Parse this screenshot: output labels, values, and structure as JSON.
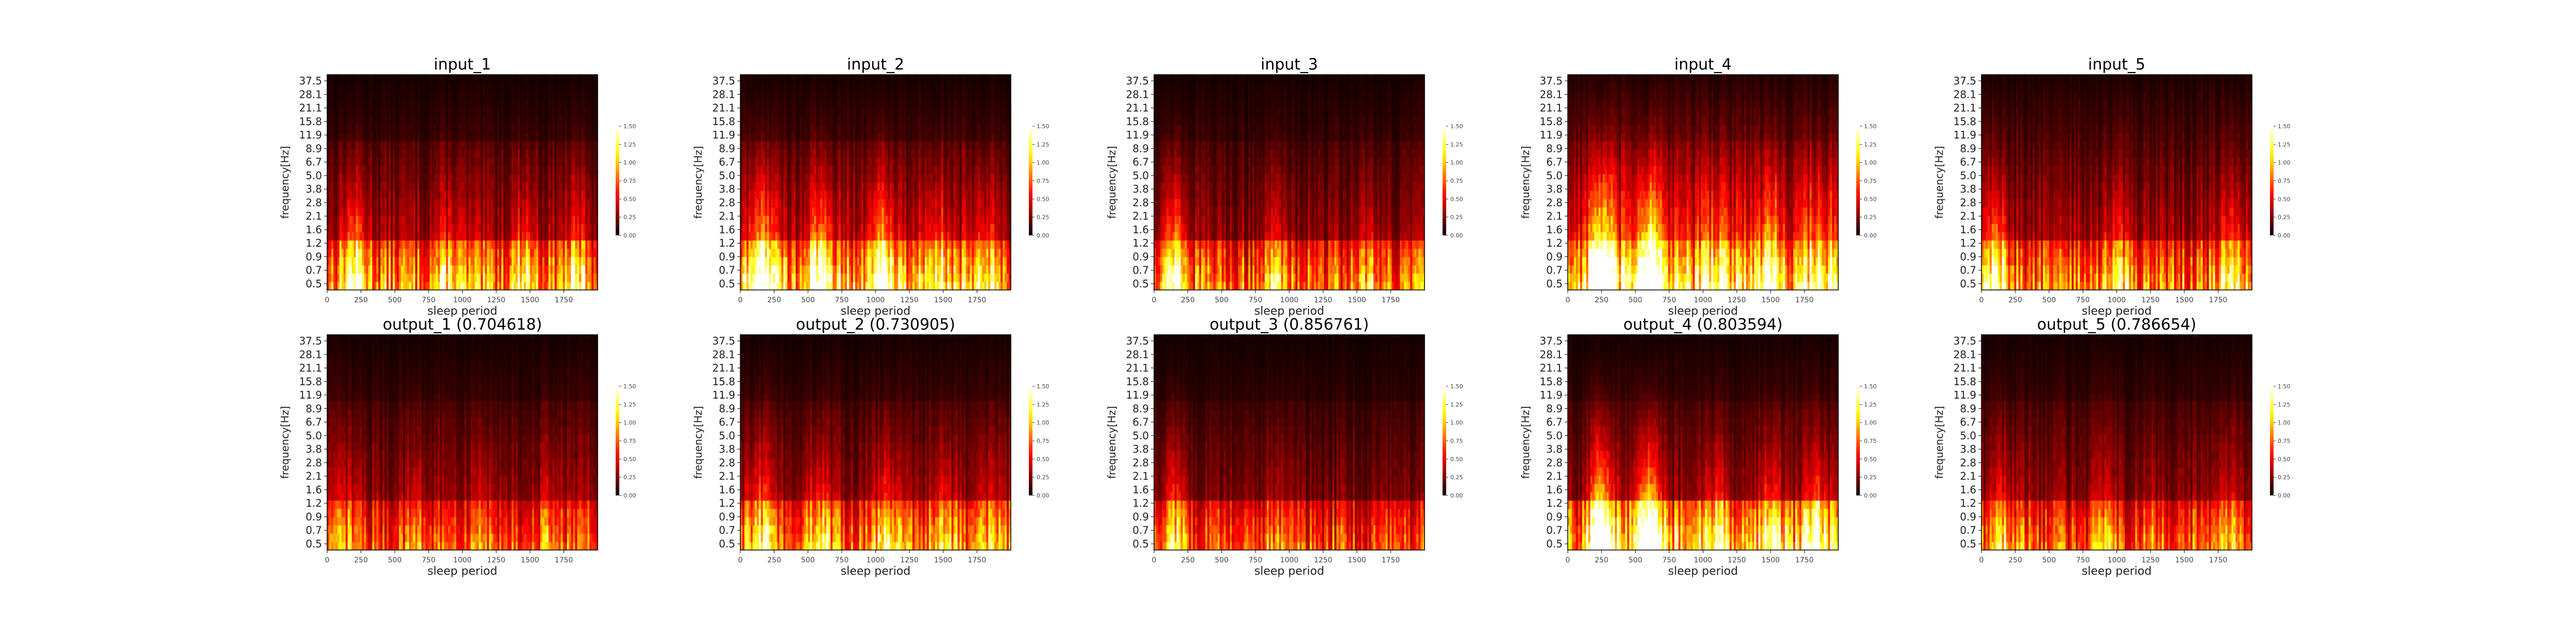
{
  "chart_data": [
    {
      "type": "heatmap",
      "title": "input_1",
      "xlabel": "sleep period",
      "ylabel": "frequency[Hz]",
      "xticks": [
        0,
        250,
        500,
        750,
        1000,
        1250,
        1500,
        1750
      ],
      "xlim": [
        0,
        2000
      ],
      "yticks": [
        "0.5",
        "0.7",
        "0.9",
        "1.2",
        "1.6",
        "2.1",
        "2.8",
        "3.8",
        "5.0",
        "6.7",
        "8.9",
        "11.9",
        "15.8",
        "21.1",
        "28.1",
        "37.5"
      ],
      "colorbar_ticks": [
        "0.00",
        "0.25",
        "0.50",
        "0.75",
        "1.00",
        "1.25",
        "1.50"
      ],
      "clim": [
        0,
        1.5
      ],
      "colormap": "hot",
      "pattern": {
        "low_band": 0.9,
        "mid_band": 0.35,
        "high_band": 0.1,
        "bursts": [
          [
            200,
            0.7
          ],
          [
            900,
            0.4
          ],
          [
            1450,
            0.45
          ],
          [
            1850,
            0.4
          ]
        ]
      }
    },
    {
      "type": "heatmap",
      "title": "input_2",
      "xlabel": "sleep period",
      "ylabel": "frequency[Hz]",
      "xticks": [
        0,
        250,
        500,
        750,
        1000,
        1250,
        1500,
        1750
      ],
      "xlim": [
        0,
        2000
      ],
      "yticks": [
        "0.5",
        "0.7",
        "0.9",
        "1.2",
        "1.6",
        "2.1",
        "2.8",
        "3.8",
        "5.0",
        "6.7",
        "8.9",
        "11.9",
        "15.8",
        "21.1",
        "28.1",
        "37.5"
      ],
      "colorbar_ticks": [
        "0.00",
        "0.25",
        "0.50",
        "0.75",
        "1.00",
        "1.25",
        "1.50"
      ],
      "clim": [
        0,
        1.5
      ],
      "colormap": "hot",
      "pattern": {
        "low_band": 1.0,
        "mid_band": 0.4,
        "high_band": 0.12,
        "bursts": [
          [
            170,
            1.0
          ],
          [
            600,
            0.8
          ],
          [
            1050,
            0.85
          ],
          [
            1450,
            0.6
          ],
          [
            1800,
            0.5
          ]
        ]
      }
    },
    {
      "type": "heatmap",
      "title": "input_3",
      "xlabel": "sleep period",
      "ylabel": "frequency[Hz]",
      "xticks": [
        0,
        250,
        500,
        750,
        1000,
        1250,
        1500,
        1750
      ],
      "xlim": [
        0,
        2000
      ],
      "yticks": [
        "0.5",
        "0.7",
        "0.9",
        "1.2",
        "1.6",
        "2.1",
        "2.8",
        "3.8",
        "5.0",
        "6.7",
        "8.9",
        "11.9",
        "15.8",
        "21.1",
        "28.1",
        "37.5"
      ],
      "colorbar_ticks": [
        "0.00",
        "0.25",
        "0.50",
        "0.75",
        "1.00",
        "1.25",
        "1.50"
      ],
      "clim": [
        0,
        1.5
      ],
      "colormap": "hot",
      "pattern": {
        "low_band": 0.8,
        "mid_band": 0.3,
        "high_band": 0.1,
        "bursts": [
          [
            150,
            0.9
          ],
          [
            900,
            0.35
          ],
          [
            1600,
            0.3
          ]
        ]
      }
    },
    {
      "type": "heatmap",
      "title": "input_4",
      "xlabel": "sleep period",
      "ylabel": "frequency[Hz]",
      "xticks": [
        0,
        250,
        500,
        750,
        1000,
        1250,
        1500,
        1750
      ],
      "xlim": [
        0,
        2000
      ],
      "yticks": [
        "0.5",
        "0.7",
        "0.9",
        "1.2",
        "1.6",
        "2.1",
        "2.8",
        "3.8",
        "5.0",
        "6.7",
        "8.9",
        "11.9",
        "15.8",
        "21.1",
        "28.1",
        "37.5"
      ],
      "colorbar_ticks": [
        "0.00",
        "0.25",
        "0.50",
        "0.75",
        "1.00",
        "1.25",
        "1.50"
      ],
      "clim": [
        0,
        1.5
      ],
      "colormap": "hot",
      "pattern": {
        "low_band": 1.1,
        "mid_band": 0.55,
        "high_band": 0.2,
        "bursts": [
          [
            250,
            1.3
          ],
          [
            600,
            1.3
          ],
          [
            1100,
            0.5
          ],
          [
            1500,
            0.6
          ],
          [
            1850,
            0.6
          ]
        ]
      }
    },
    {
      "type": "heatmap",
      "title": "input_5",
      "xlabel": "sleep period",
      "ylabel": "frequency[Hz]",
      "xticks": [
        0,
        250,
        500,
        750,
        1000,
        1250,
        1500,
        1750
      ],
      "xlim": [
        0,
        2000
      ],
      "yticks": [
        "0.5",
        "0.7",
        "0.9",
        "1.2",
        "1.6",
        "2.1",
        "2.8",
        "3.8",
        "5.0",
        "6.7",
        "8.9",
        "11.9",
        "15.8",
        "21.1",
        "28.1",
        "37.5"
      ],
      "colorbar_ticks": [
        "0.00",
        "0.25",
        "0.50",
        "0.75",
        "1.00",
        "1.25",
        "1.50"
      ],
      "clim": [
        0,
        1.5
      ],
      "colormap": "hot",
      "pattern": {
        "low_band": 0.85,
        "mid_band": 0.35,
        "high_band": 0.15,
        "bursts": [
          [
            100,
            0.8
          ],
          [
            1000,
            0.4
          ],
          [
            1850,
            0.5
          ]
        ]
      }
    },
    {
      "type": "heatmap",
      "title": "output_1 (0.704618)",
      "xlabel": "sleep period",
      "ylabel": "frequency[Hz]",
      "xticks": [
        0,
        250,
        500,
        750,
        1000,
        1250,
        1500,
        1750
      ],
      "xlim": [
        0,
        2000
      ],
      "yticks": [
        "0.5",
        "0.7",
        "0.9",
        "1.2",
        "1.6",
        "2.1",
        "2.8",
        "3.8",
        "5.0",
        "6.7",
        "8.9",
        "11.9",
        "15.8",
        "21.1",
        "28.1",
        "37.5"
      ],
      "colorbar_ticks": [
        "0.00",
        "0.25",
        "0.50",
        "0.75",
        "1.00",
        "1.25",
        "1.50"
      ],
      "clim": [
        0,
        1.5
      ],
      "colormap": "hot",
      "pattern": {
        "low_band": 0.7,
        "mid_band": 0.3,
        "high_band": 0.1,
        "bursts": [
          [
            150,
            0.3
          ],
          [
            650,
            0.25
          ],
          [
            1150,
            0.25
          ],
          [
            1650,
            0.25
          ]
        ]
      }
    },
    {
      "type": "heatmap",
      "title": "output_2 (0.730905)",
      "xlabel": "sleep period",
      "ylabel": "frequency[Hz]",
      "xticks": [
        0,
        250,
        500,
        750,
        1000,
        1250,
        1500,
        1750
      ],
      "xlim": [
        0,
        2000
      ],
      "yticks": [
        "0.5",
        "0.7",
        "0.9",
        "1.2",
        "1.6",
        "2.1",
        "2.8",
        "3.8",
        "5.0",
        "6.7",
        "8.9",
        "11.9",
        "15.8",
        "21.1",
        "28.1",
        "37.5"
      ],
      "colorbar_ticks": [
        "0.00",
        "0.25",
        "0.50",
        "0.75",
        "1.00",
        "1.25",
        "1.50"
      ],
      "clim": [
        0,
        1.5
      ],
      "colormap": "hot",
      "pattern": {
        "low_band": 0.8,
        "mid_band": 0.3,
        "high_band": 0.1,
        "bursts": [
          [
            150,
            0.6
          ],
          [
            580,
            0.5
          ],
          [
            1080,
            0.5
          ],
          [
            1500,
            0.45
          ],
          [
            1850,
            0.3
          ]
        ]
      }
    },
    {
      "type": "heatmap",
      "title": "output_3 (0.856761)",
      "xlabel": "sleep period",
      "ylabel": "frequency[Hz]",
      "xticks": [
        0,
        250,
        500,
        750,
        1000,
        1250,
        1500,
        1750
      ],
      "xlim": [
        0,
        2000
      ],
      "yticks": [
        "0.5",
        "0.7",
        "0.9",
        "1.2",
        "1.6",
        "2.1",
        "2.8",
        "3.8",
        "5.0",
        "6.7",
        "8.9",
        "11.9",
        "15.8",
        "21.1",
        "28.1",
        "37.5"
      ],
      "colorbar_ticks": [
        "0.00",
        "0.25",
        "0.50",
        "0.75",
        "1.00",
        "1.25",
        "1.50"
      ],
      "clim": [
        0,
        1.5
      ],
      "colormap": "hot",
      "pattern": {
        "low_band": 0.7,
        "mid_band": 0.25,
        "high_band": 0.08,
        "bursts": [
          [
            150,
            0.6
          ],
          [
            900,
            0.2
          ]
        ]
      }
    },
    {
      "type": "heatmap",
      "title": "output_4 (0.803594)",
      "xlabel": "sleep period",
      "ylabel": "frequency[Hz]",
      "xticks": [
        0,
        250,
        500,
        750,
        1000,
        1250,
        1500,
        1750
      ],
      "xlim": [
        0,
        2000
      ],
      "yticks": [
        "0.5",
        "0.7",
        "0.9",
        "1.2",
        "1.6",
        "2.1",
        "2.8",
        "3.8",
        "5.0",
        "6.7",
        "8.9",
        "11.9",
        "15.8",
        "21.1",
        "28.1",
        "37.5"
      ],
      "colorbar_ticks": [
        "0.00",
        "0.25",
        "0.50",
        "0.75",
        "1.00",
        "1.25",
        "1.50"
      ],
      "clim": [
        0,
        1.5
      ],
      "colormap": "hot",
      "pattern": {
        "low_band": 1.0,
        "mid_band": 0.3,
        "high_band": 0.1,
        "bursts": [
          [
            250,
            1.3
          ],
          [
            600,
            1.3
          ],
          [
            1100,
            0.5
          ],
          [
            1500,
            0.55
          ],
          [
            1850,
            0.55
          ]
        ]
      }
    },
    {
      "type": "heatmap",
      "title": "output_5 (0.786654)",
      "xlabel": "sleep period",
      "ylabel": "frequency[Hz]",
      "xticks": [
        0,
        250,
        500,
        750,
        1000,
        1250,
        1500,
        1750
      ],
      "xlim": [
        0,
        2000
      ],
      "yticks": [
        "0.5",
        "0.7",
        "0.9",
        "1.2",
        "1.6",
        "2.1",
        "2.8",
        "3.8",
        "5.0",
        "6.7",
        "8.9",
        "11.9",
        "15.8",
        "21.1",
        "28.1",
        "37.5"
      ],
      "colorbar_ticks": [
        "0.00",
        "0.25",
        "0.50",
        "0.75",
        "1.00",
        "1.25",
        "1.50"
      ],
      "clim": [
        0,
        1.5
      ],
      "colormap": "hot",
      "pattern": {
        "low_band": 0.75,
        "mid_band": 0.3,
        "high_band": 0.1,
        "bursts": [
          [
            150,
            0.45
          ],
          [
            900,
            0.2
          ],
          [
            1800,
            0.3
          ]
        ]
      }
    }
  ]
}
